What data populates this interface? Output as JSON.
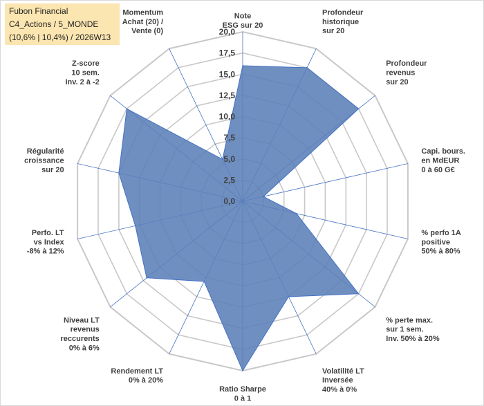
{
  "title": {
    "line1": "Fubon Financial",
    "line2": "C4_Actions / 5_MONDE",
    "line3": "(10,6% | 10,4%) / 2026W13"
  },
  "colors": {
    "fill": "#5b80b8",
    "stroke": "#4472c4",
    "grid": "#c8c8c8",
    "spoke": "#4472c4",
    "title_bg": "#fbe5b0"
  },
  "chart_data": {
    "type": "radar",
    "rmin": 0,
    "rmax": 20,
    "step": 2.5,
    "tick_labels": [
      "0,0",
      "2,5",
      "5,0",
      "7,5",
      "10,0",
      "12,5",
      "15,0",
      "17,5",
      "20,0"
    ],
    "axes": [
      [
        "Note",
        "ESG sur 20"
      ],
      [
        "Profondeur",
        "historique",
        "sur 20"
      ],
      [
        "Profondeur",
        "revenus",
        "sur 20"
      ],
      [
        "Capi. bours.",
        "en MdEUR",
        "0 à 60 G€"
      ],
      [
        "% perfo 1A",
        "positive",
        "50% à 80%"
      ],
      [
        "% perte max.",
        "sur 1 sem.",
        "Inv. 50% à 20%"
      ],
      [
        "Volatilité LT",
        "Inversée",
        "40% à 0%"
      ],
      [
        "Ratio Sharpe",
        "0 à 1"
      ],
      [
        "Rendement LT",
        "0% à 20%"
      ],
      [
        "Niveau LT",
        "revenus",
        "reccurents",
        "0% à 6%"
      ],
      [
        "Perfo. LT",
        "vs Index",
        "-8% à 12%"
      ],
      [
        "Régularité",
        "croissance",
        "sur 20"
      ],
      [
        "Z-score",
        "10 sem.",
        "Inv. 2 à -2"
      ],
      [
        "Momentum",
        "Achat (20) /",
        "Vente (0)"
      ]
    ],
    "series": [
      {
        "name": "Fubon Financial",
        "values": [
          16.0,
          17.5,
          17.5,
          2.5,
          6.5,
          17.5,
          12.5,
          20.0,
          10.5,
          14.5,
          13.0,
          15.0,
          17.5,
          5.5
        ]
      }
    ]
  }
}
